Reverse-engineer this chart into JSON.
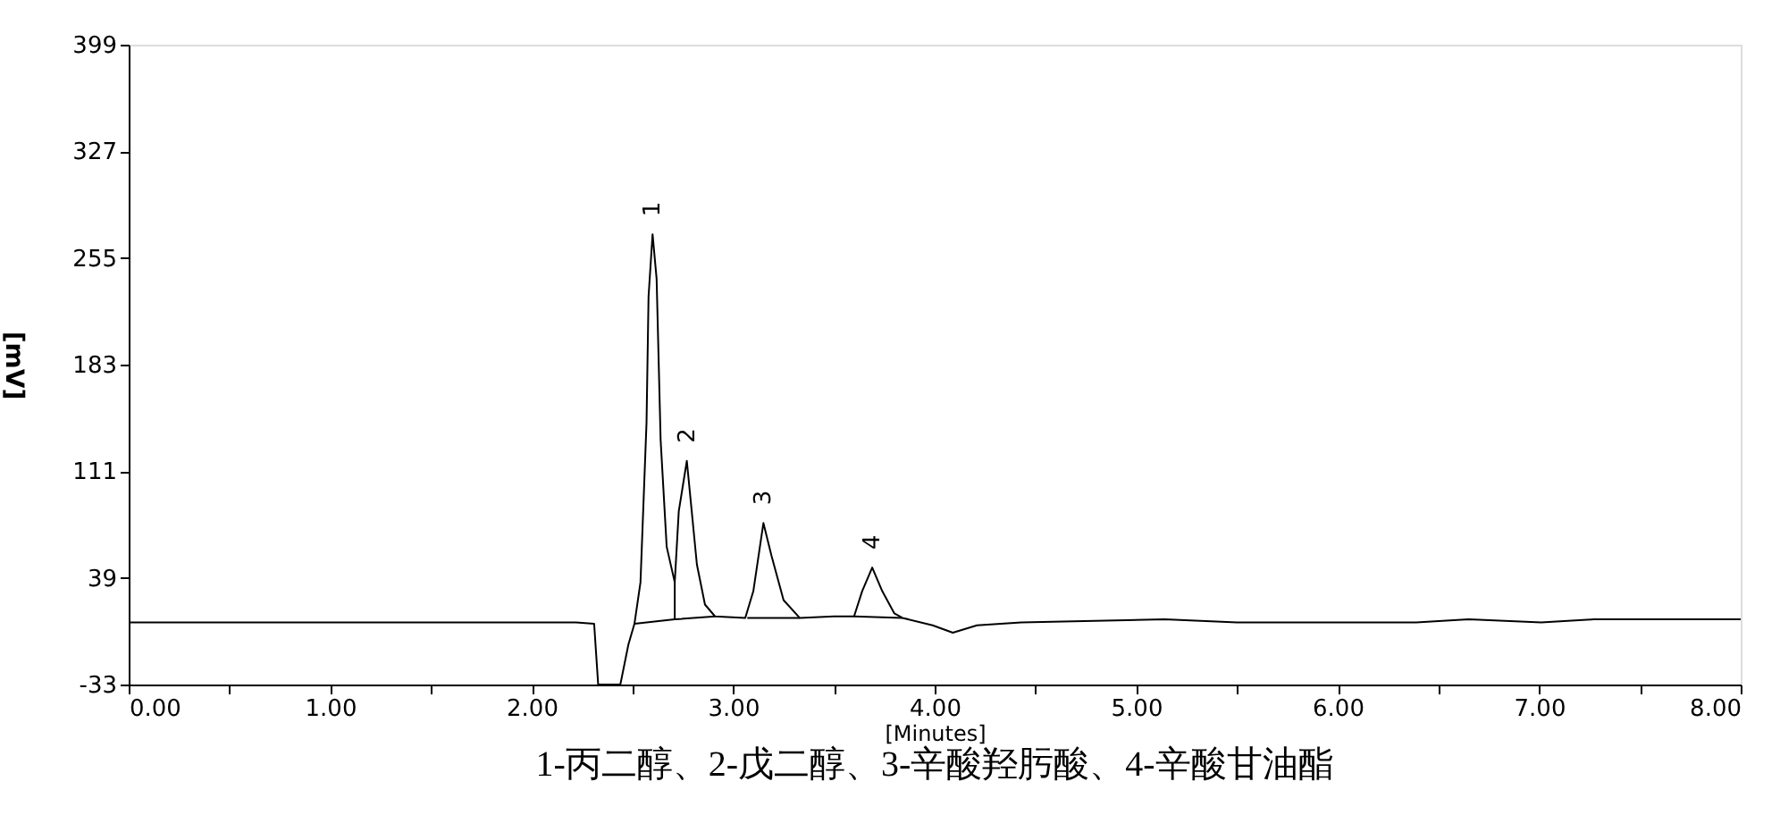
{
  "chart_data": {
    "type": "line",
    "xlabel": "[Minutes]",
    "ylabel": "[mV]",
    "xlim": [
      0,
      8
    ],
    "ylim": [
      -33,
      399
    ],
    "xticks": [
      {
        "value": 0,
        "label": "0.00"
      },
      {
        "value": 0.5,
        "label": null
      },
      {
        "value": 1,
        "label": "1.00"
      },
      {
        "value": 1.5,
        "label": null
      },
      {
        "value": 2,
        "label": "2.00"
      },
      {
        "value": 2.5,
        "label": null
      },
      {
        "value": 3,
        "label": "3.00"
      },
      {
        "value": 3.5,
        "label": null
      },
      {
        "value": 4,
        "label": "4.00"
      },
      {
        "value": 4.5,
        "label": null
      },
      {
        "value": 5,
        "label": "5.00"
      },
      {
        "value": 5.5,
        "label": null
      },
      {
        "value": 6,
        "label": "6.00"
      },
      {
        "value": 6.5,
        "label": null
      },
      {
        "value": 7,
        "label": "7.00"
      },
      {
        "value": 7.5,
        "label": null
      },
      {
        "value": 8,
        "label": "8.00"
      }
    ],
    "yticks": [
      -33,
      39,
      111,
      183,
      255,
      327,
      399
    ],
    "grid": false,
    "marker": "none",
    "line_style": "solid",
    "series": [
      {
        "color": "#000000",
        "x": [
          0,
          2.22,
          2.31,
          2.33,
          2.44,
          2.48,
          2.51,
          2.54,
          2.57,
          2.58,
          2.6,
          2.62,
          2.64,
          2.67,
          2.71,
          2.73,
          2.77,
          2.79,
          2.82,
          2.86,
          2.91,
          3.06,
          3.1,
          3.15,
          3.19,
          3.25,
          3.33,
          3.5,
          3.6,
          3.64,
          3.69,
          3.74,
          3.8,
          3.84,
          3.99,
          4.09,
          4.21,
          4.43,
          5.14,
          5.5,
          6.39,
          6.65,
          7.01,
          7.27,
          8.0
        ],
        "values": [
          9,
          9,
          8,
          -33,
          -33,
          -6,
          8,
          36,
          144,
          229,
          271,
          241,
          132,
          60,
          36,
          84,
          118,
          90,
          48,
          21,
          13,
          12,
          30,
          76,
          54,
          24,
          12,
          13,
          13,
          30,
          46,
          30,
          15,
          12,
          7,
          2,
          7,
          9,
          11,
          9,
          9,
          11,
          9,
          11,
          11
        ]
      },
      {
        "color": "#000000",
        "x": [
          2.51,
          2.71,
          2.91,
          null,
          3.07,
          3.33,
          null,
          3.6,
          3.84
        ],
        "values": [
          8,
          11,
          13,
          null,
          12,
          12,
          null,
          13,
          12
        ]
      },
      {
        "color": "#000000",
        "x": [
          2.71,
          2.71
        ],
        "values": [
          11,
          36
        ]
      }
    ],
    "annotations": [
      {
        "text": "1",
        "x": 2.6,
        "y": 271
      },
      {
        "text": "2",
        "x": 2.77,
        "y": 118
      },
      {
        "text": "3",
        "x": 3.15,
        "y": 76
      },
      {
        "text": "4",
        "x": 3.69,
        "y": 46
      },
      "1-丙二醇、2-戊二醇、3-辛酸羟肟酸、4-辛酸甘油酯"
    ]
  }
}
